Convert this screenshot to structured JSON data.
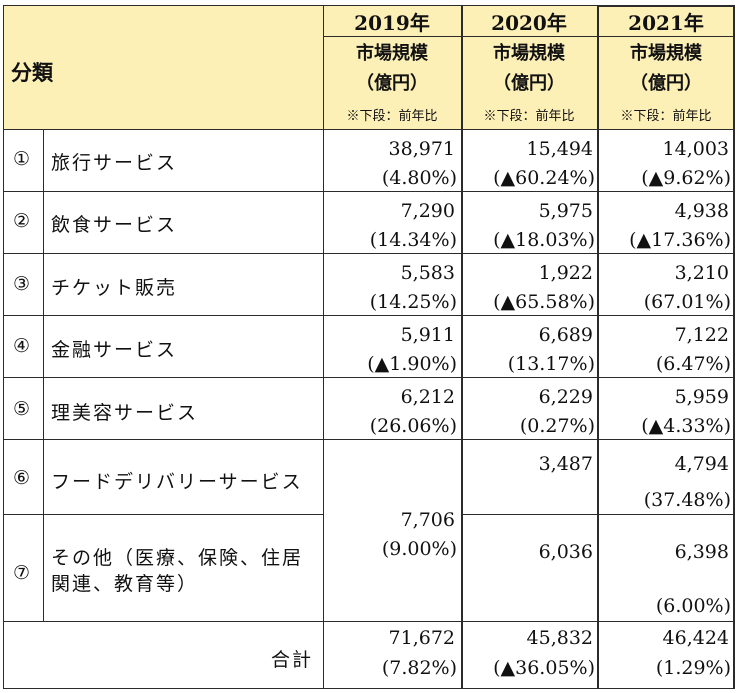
{
  "header": {
    "category_label": "分類",
    "years": [
      {
        "year": "2019年",
        "line1": "市場規模",
        "line2": "（億円）",
        "note": "※下段：前年比"
      },
      {
        "year": "2020年",
        "line1": "市場規模",
        "line2": "（億円）",
        "note": "※下段：前年比"
      },
      {
        "year": "2021年",
        "line1": "市場規模",
        "line2": "（億円）",
        "note": "※下段：前年比"
      }
    ]
  },
  "rows": [
    {
      "no": "①",
      "name": "旅行サービス",
      "v2019": "38,971",
      "r2019": "(4.80%)",
      "v2020": "15,494",
      "r2020": "(▲60.24%)",
      "v2021": "14,003",
      "r2021": "(▲9.62%)"
    },
    {
      "no": "②",
      "name": "飲食サービス",
      "v2019": "7,290",
      "r2019": "(14.34%)",
      "v2020": "5,975",
      "r2020": "(▲18.03%)",
      "v2021": "4,938",
      "r2021": "(▲17.36%)"
    },
    {
      "no": "③",
      "name": "チケット販売",
      "v2019": "5,583",
      "r2019": "(14.25%)",
      "v2020": "1,922",
      "r2020": "(▲65.58%)",
      "v2021": "3,210",
      "r2021": "(67.01%)"
    },
    {
      "no": "④",
      "name": "金融サービス",
      "v2019": "5,911",
      "r2019": "(▲1.90%)",
      "v2020": "6,689",
      "r2020": "(13.17%)",
      "v2021": "7,122",
      "r2021": "(6.47%)"
    },
    {
      "no": "⑤",
      "name": "理美容サービス",
      "v2019": "6,212",
      "r2019": "(26.06%)",
      "v2020": "6,229",
      "r2020": "(0.27%)",
      "v2021": "5,959",
      "r2021": "(▲4.33%)"
    }
  ],
  "food_delivery": {
    "no": "⑥",
    "name": "フードデリバリーサービス",
    "v2020": "3,487",
    "v2021": "4,794",
    "r2021": "(37.48%)"
  },
  "other": {
    "no": "⑦",
    "name_line1": "その他（医療、保険、住居",
    "name_line2": "関連、教育等）",
    "v2020": "6,036",
    "v2021": "6,398",
    "r2021": "(6.00%)"
  },
  "merged_2019": {
    "value": "7,706",
    "ratio": "(9.00%)"
  },
  "total": {
    "label": "合計",
    "v2019": "71,672",
    "r2019": "(7.82%)",
    "v2020": "45,832",
    "r2020": "(▲36.05%)",
    "v2021": "46,424",
    "r2021": "(1.29%)"
  }
}
